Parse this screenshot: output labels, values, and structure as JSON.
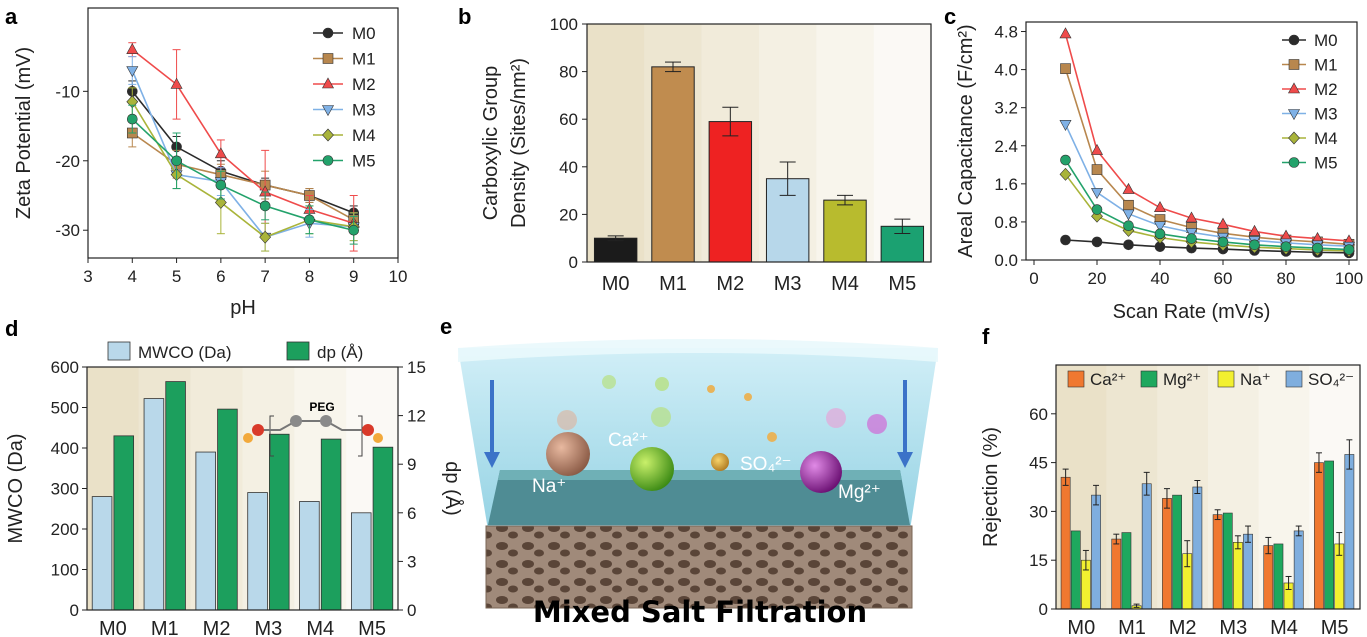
{
  "panels": {
    "a": "a",
    "b": "b",
    "c": "c",
    "d": "d",
    "e": "e",
    "f": "f"
  },
  "colors": {
    "M0": "#2b2b2b",
    "M1": "#b8874e",
    "M2": "#ef4b4b",
    "M3": "#7fb1e6",
    "M4": "#a9b43a",
    "M5": "#23a26b"
  },
  "chart_data": [
    {
      "id": "a",
      "type": "line",
      "xlabel": "pH",
      "ylabel": "Zeta Potential (mV)",
      "xlim": [
        3,
        10
      ],
      "ylim": [
        -34,
        2
      ],
      "xticks": [
        3,
        4,
        5,
        6,
        7,
        8,
        9,
        10
      ],
      "yticks": [
        -10,
        -20,
        -30
      ],
      "x": [
        4,
        5,
        6,
        7,
        8,
        9
      ],
      "legend": "top-right",
      "series": [
        {
          "name": "M0",
          "marker": "circle",
          "values": [
            -10,
            -18,
            -21.5,
            -23.5,
            -25,
            -27.5
          ],
          "err": [
            1.5,
            1.5,
            1.5,
            1,
            1,
            1
          ]
        },
        {
          "name": "M1",
          "marker": "square",
          "values": [
            -16,
            -20.5,
            -22,
            -23.5,
            -25,
            -28.5
          ],
          "err": [
            2,
            2,
            1.5,
            2,
            1,
            1
          ]
        },
        {
          "name": "M2",
          "marker": "triangle-up",
          "values": [
            -4,
            -9,
            -19,
            -24.5,
            -27,
            -29
          ],
          "err": [
            1,
            5,
            2,
            6,
            2,
            4
          ]
        },
        {
          "name": "M3",
          "marker": "triangle-down",
          "values": [
            -7,
            -22,
            -23,
            -31,
            -29,
            -29.5
          ],
          "err": [
            2,
            2,
            2,
            2,
            2,
            2
          ]
        },
        {
          "name": "M4",
          "marker": "diamond",
          "values": [
            -11.5,
            -22,
            -26,
            -31,
            -28.5,
            -29.5
          ],
          "err": [
            2,
            2,
            4.5,
            2,
            2,
            2
          ]
        },
        {
          "name": "M5",
          "marker": "circle",
          "values": [
            -14,
            -20,
            -23.5,
            -26.5,
            -28.5,
            -30
          ],
          "err": [
            2,
            4,
            2,
            2,
            2,
            2
          ]
        }
      ]
    },
    {
      "id": "b",
      "type": "bar",
      "ylabel": [
        "Carboxylic Group",
        "Density (Sites/nm²)"
      ],
      "categories": [
        "M0",
        "M1",
        "M2",
        "M3",
        "M4",
        "M5"
      ],
      "values": [
        10,
        82,
        59,
        35,
        26,
        15
      ],
      "err": [
        1,
        2,
        6,
        7,
        2,
        3
      ],
      "ylim": [
        0,
        100
      ],
      "yticks": [
        0,
        20,
        40,
        60,
        80,
        100
      ],
      "colors": [
        "#1b1b1b",
        "#c08c4f",
        "#ee2222",
        "#b7d7ea",
        "#b8bb2e",
        "#1ba171"
      ]
    },
    {
      "id": "c",
      "type": "line",
      "xlabel": "Scan  Rate (mV/s)",
      "ylabel": "Areal Capacitance (F/cm²)",
      "xlim": [
        0,
        100
      ],
      "ylim": [
        0,
        5
      ],
      "xticks": [
        0,
        20,
        40,
        60,
        80,
        100
      ],
      "yticks": [
        0.0,
        0.8,
        1.6,
        2.4,
        3.2,
        4.0,
        4.8
      ],
      "x": [
        10,
        20,
        30,
        40,
        50,
        60,
        70,
        80,
        90,
        100
      ],
      "legend": "top-right",
      "series": [
        {
          "name": "M0",
          "marker": "circle",
          "values": [
            0.42,
            0.38,
            0.32,
            0.28,
            0.25,
            0.23,
            0.2,
            0.18,
            0.16,
            0.15
          ]
        },
        {
          "name": "M1",
          "marker": "square",
          "values": [
            4.02,
            1.9,
            1.15,
            0.85,
            0.68,
            0.56,
            0.48,
            0.42,
            0.38,
            0.33
          ]
        },
        {
          "name": "M2",
          "marker": "triangle-up",
          "values": [
            4.75,
            2.3,
            1.48,
            1.1,
            0.88,
            0.75,
            0.6,
            0.5,
            0.45,
            0.4
          ]
        },
        {
          "name": "M3",
          "marker": "triangle-down",
          "values": [
            2.85,
            1.42,
            0.97,
            0.72,
            0.58,
            0.48,
            0.41,
            0.36,
            0.32,
            0.29
          ]
        },
        {
          "name": "M4",
          "marker": "diamond",
          "values": [
            1.8,
            0.92,
            0.62,
            0.47,
            0.38,
            0.32,
            0.27,
            0.24,
            0.21,
            0.19
          ]
        },
        {
          "name": "M5",
          "marker": "circle",
          "values": [
            2.1,
            1.06,
            0.72,
            0.55,
            0.45,
            0.38,
            0.32,
            0.28,
            0.25,
            0.22
          ]
        }
      ]
    },
    {
      "id": "d",
      "type": "bar",
      "ylabel": "MWCO (Da)",
      "y2label": "dp (Å)",
      "categories": [
        "M0",
        "M1",
        "M2",
        "M3",
        "M4",
        "M5"
      ],
      "ylim": [
        0,
        600
      ],
      "yticks": [
        0,
        100,
        200,
        300,
        400,
        500,
        600
      ],
      "y2lim": [
        0,
        15
      ],
      "y2ticks": [
        0,
        3,
        6,
        9,
        12,
        15
      ],
      "legend": "top",
      "series": [
        {
          "name": "MWCO (Da)",
          "axis": "left",
          "color": "#b9d8ea",
          "values": [
            280,
            522,
            390,
            290,
            268,
            240
          ]
        },
        {
          "name": "dp (Å)",
          "axis": "right",
          "color": "#1c9f5d",
          "values": [
            10.75,
            14.1,
            12.4,
            10.85,
            10.55,
            10.05
          ]
        }
      ],
      "inset_label": "PEG"
    },
    {
      "id": "f",
      "type": "bar",
      "ylabel": "Rejection (%)",
      "categories": [
        "M0",
        "M1",
        "M2",
        "M3",
        "M4",
        "M5"
      ],
      "ylim": [
        0,
        75
      ],
      "yticks": [
        0,
        15,
        30,
        45,
        60
      ],
      "legend": "top",
      "series": [
        {
          "name": "Ca²⁺",
          "color": "#f07830",
          "values": [
            40.5,
            21.5,
            34,
            29,
            19.5,
            45
          ],
          "err": [
            2.5,
            1.5,
            3,
            1.5,
            2.5,
            3
          ]
        },
        {
          "name": "Mg²⁺",
          "color": "#1ea85e",
          "values": [
            24,
            23.5,
            35,
            29.5,
            20,
            45.5
          ],
          "err": [
            0,
            0,
            0,
            0,
            0,
            0
          ]
        },
        {
          "name": "Na⁺",
          "color": "#f2f030",
          "values": [
            15,
            1,
            17,
            20.5,
            8,
            20
          ],
          "err": [
            3,
            0.5,
            4,
            2,
            2,
            3.5
          ]
        },
        {
          "name": "SO₄²⁻",
          "color": "#7faede",
          "values": [
            35,
            38.5,
            37.5,
            23,
            24,
            47.5
          ],
          "err": [
            3,
            3.5,
            2,
            2.5,
            1.5,
            4.5
          ]
        }
      ]
    }
  ],
  "illustration": {
    "ions": [
      "Na⁺",
      "Ca²⁺",
      "SO₄²⁻",
      "Mg²⁺"
    ],
    "caption": "Mixed Salt Filtration"
  }
}
